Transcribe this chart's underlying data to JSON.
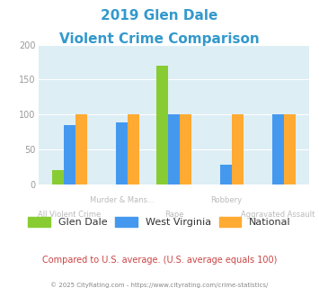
{
  "title_line1": "2019 Glen Dale",
  "title_line2": "Violent Crime Comparison",
  "title_color": "#3399cc",
  "categories": [
    "All Violent Crime",
    "Murder & Mans...",
    "Rape",
    "Robbery",
    "Aggravated Assault"
  ],
  "upper_labels": [
    "",
    "Murder & Mans...",
    "",
    "Robbery",
    ""
  ],
  "lower_labels": [
    "All Violent Crime",
    "",
    "Rape",
    "",
    "Aggravated Assault"
  ],
  "glen_dale": [
    20,
    0,
    170,
    0,
    0
  ],
  "west_virginia": [
    85,
    88,
    100,
    28,
    100
  ],
  "national": [
    100,
    100,
    100,
    100,
    100
  ],
  "glen_dale_color": "#88cc33",
  "west_virginia_color": "#4499ee",
  "national_color": "#ffaa33",
  "bg_color": "#ddeef5",
  "ylim": [
    0,
    200
  ],
  "yticks": [
    0,
    50,
    100,
    150,
    200
  ],
  "footer_text": "Compared to U.S. average. (U.S. average equals 100)",
  "footer_color": "#cc4444",
  "copyright_text": "© 2025 CityRating.com - https://www.cityrating.com/crime-statistics/",
  "copyright_color": "#888888",
  "legend_labels": [
    "Glen Dale",
    "West Virginia",
    "National"
  ],
  "cat_label_color": "#bbbbbb",
  "bar_width": 0.22
}
